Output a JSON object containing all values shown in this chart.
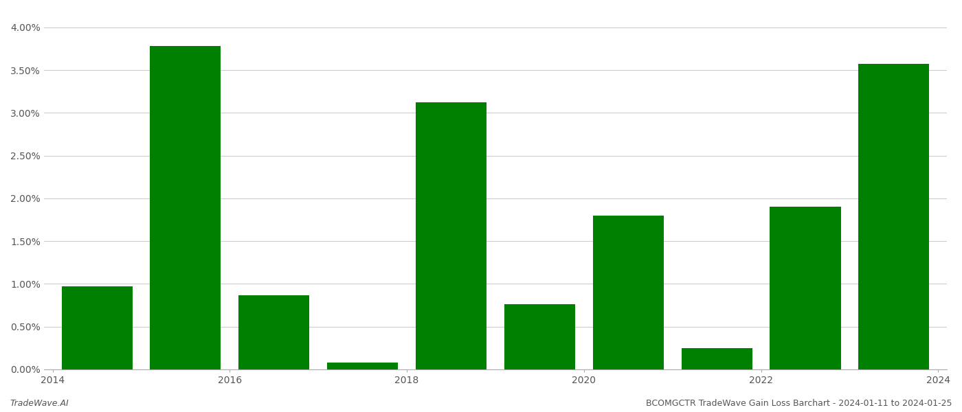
{
  "years": [
    2014,
    2015,
    2016,
    2017,
    2018,
    2019,
    2020,
    2021,
    2022,
    2023
  ],
  "values": [
    0.0097,
    0.0378,
    0.0087,
    0.0008,
    0.0312,
    0.0076,
    0.018,
    0.0025,
    0.019,
    0.0357
  ],
  "bar_color": "#008000",
  "background_color": "#ffffff",
  "grid_color": "#cccccc",
  "footer_left": "TradeWave.AI",
  "footer_right": "BCOMGCTR TradeWave Gain Loss Barchart - 2024-01-11 to 2024-01-25",
  "ylim_min": 0.0,
  "ylim_max": 0.042,
  "ytick_values": [
    0.0,
    0.005,
    0.01,
    0.015,
    0.02,
    0.025,
    0.03,
    0.035,
    0.04
  ],
  "tick_fontsize": 10,
  "footer_fontsize": 9,
  "bar_width": 0.8
}
